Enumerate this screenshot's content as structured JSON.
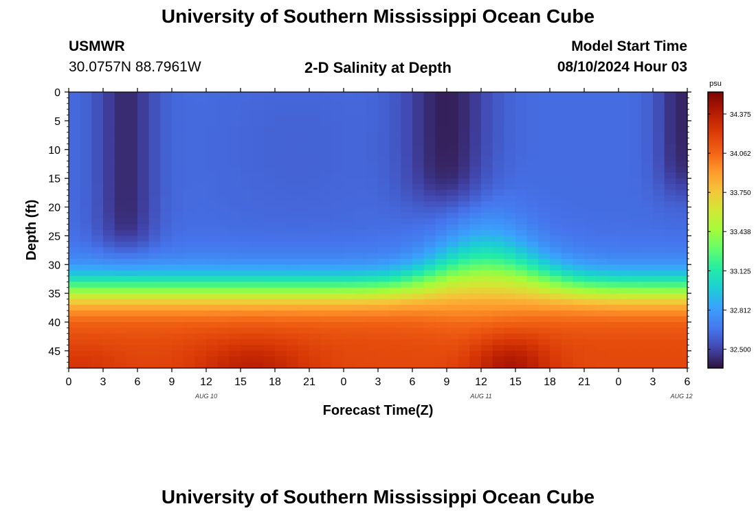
{
  "page": {
    "title": "University of Southern Mississippi Ocean Cube",
    "footer_title": "University of Southern Mississippi Ocean Cube"
  },
  "header": {
    "station": "USMWR",
    "coords": "30.0757N  88.7961W",
    "plot_title": "2-D Salinity at Depth",
    "start_label": "Model Start Time",
    "start_value": "08/10/2024 Hour 03"
  },
  "chart_data": {
    "type": "heatmap",
    "title": "2-D Salinity at Depth",
    "xlabel": "Forecast Time(Z)",
    "ylabel": "Depth (ft)",
    "x_tick_labels": [
      "0",
      "3",
      "6",
      "9",
      "12",
      "15",
      "18",
      "21",
      "0",
      "3",
      "6",
      "9",
      "12",
      "15",
      "18",
      "21",
      "0",
      "3",
      "6"
    ],
    "x_hours_since_aug10_00z": [
      0,
      3,
      6,
      9,
      12,
      15,
      18,
      21,
      24,
      27,
      30,
      33,
      36,
      39,
      42,
      45,
      48,
      51,
      54
    ],
    "xlim_hours": [
      0,
      54
    ],
    "date_labels": [
      "AUG 10",
      "AUG 11",
      "AUG 12"
    ],
    "y_ticks": [
      0,
      5,
      10,
      15,
      20,
      25,
      30,
      35,
      40,
      45
    ],
    "ylim": [
      0,
      48
    ],
    "y_inverted": true,
    "colorbar": {
      "unit": "psu",
      "ticks": [
        "34.375",
        "34.062",
        "33.750",
        "33.438",
        "33.125",
        "32.812",
        "32.500"
      ],
      "range": [
        32.35,
        34.55
      ]
    },
    "grid": false,
    "cell_hours": 1,
    "cell_depth_ft": 1,
    "field_description": "Surface layer (0-28 ft) ~32.5-32.75 psu, minima ~32.40 near hours 5 and 33 and 53; halocline 30-37 ft; bottom (40-48 ft) ~34.1-34.5 psu with maxima near hours 16 and 39; halocline uplift near hour 37"
  }
}
